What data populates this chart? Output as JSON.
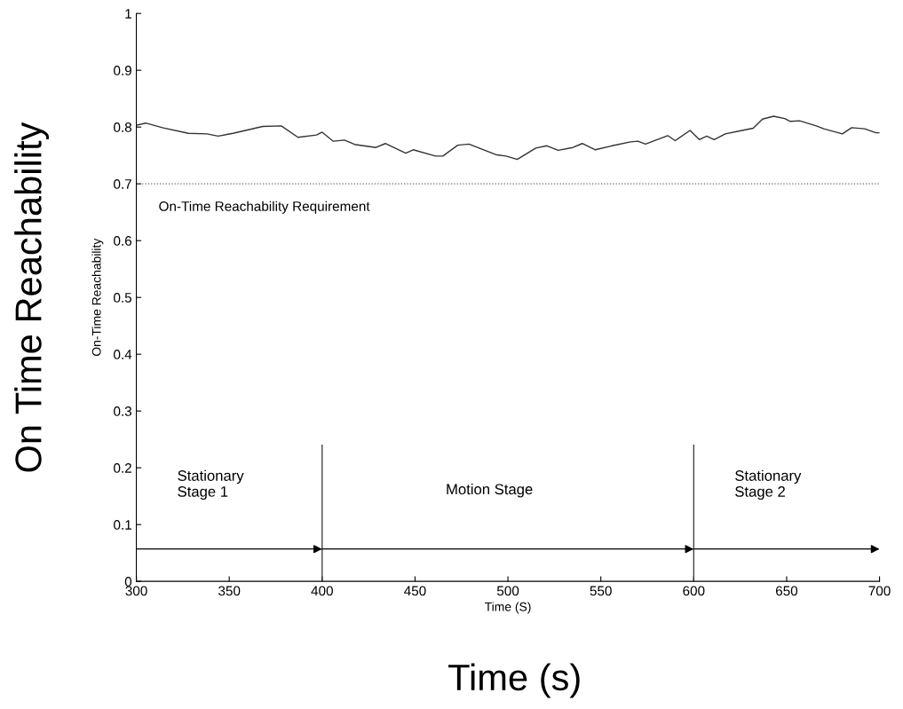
{
  "chart_data": {
    "type": "line",
    "xlabel": "Time (S)",
    "ylabel": "On-Time Reachability",
    "x": [
      300,
      305,
      314,
      328,
      338,
      344,
      352,
      368,
      378,
      387,
      397,
      400,
      406,
      412,
      418,
      429,
      434,
      445,
      449,
      461,
      465,
      473,
      479,
      494,
      499,
      505,
      515,
      521,
      527,
      535,
      540,
      547,
      556,
      566,
      570,
      574,
      586,
      590,
      598,
      603,
      607,
      611,
      617,
      626,
      632,
      637,
      643,
      649,
      652,
      657,
      666,
      670,
      680,
      685,
      692,
      698,
      700
    ],
    "series": [
      {
        "color": "#333333",
        "values": [
          0.803,
          0.807,
          0.799,
          0.789,
          0.788,
          0.784,
          0.789,
          0.801,
          0.802,
          0.782,
          0.786,
          0.791,
          0.775,
          0.777,
          0.769,
          0.764,
          0.771,
          0.754,
          0.76,
          0.749,
          0.749,
          0.768,
          0.77,
          0.751,
          0.749,
          0.743,
          0.763,
          0.767,
          0.759,
          0.764,
          0.771,
          0.76,
          0.767,
          0.774,
          0.775,
          0.77,
          0.785,
          0.776,
          0.794,
          0.778,
          0.784,
          0.778,
          0.788,
          0.794,
          0.798,
          0.814,
          0.819,
          0.815,
          0.81,
          0.811,
          0.802,
          0.797,
          0.788,
          0.799,
          0.797,
          0.79,
          0.79
        ]
      }
    ],
    "xlim": [
      300,
      700
    ],
    "xticks": [
      300,
      350,
      400,
      450,
      500,
      550,
      600,
      650,
      700
    ],
    "ylim": [
      0,
      1
    ],
    "yticks": [
      0,
      0.1,
      0.2,
      0.3,
      0.4,
      0.5,
      0.6,
      0.7,
      0.8,
      0.9,
      1
    ],
    "ref_lines": [
      {
        "axis": "y",
        "value": 0.7,
        "label": "On-Time Reachability Requirement",
        "line_style": "dotted",
        "color": "#666666"
      },
      {
        "axis": "x",
        "value": 400,
        "color": "#333333"
      },
      {
        "axis": "x",
        "value": 600,
        "color": "#333333"
      }
    ],
    "annotations": [
      "Stationary\nStage 1",
      "Motion Stage",
      "Stationary\nStage 2",
      "On Time Reachability",
      "Time (s)"
    ],
    "grid": false,
    "legend": false,
    "marker": "none",
    "line_style": "solid"
  }
}
